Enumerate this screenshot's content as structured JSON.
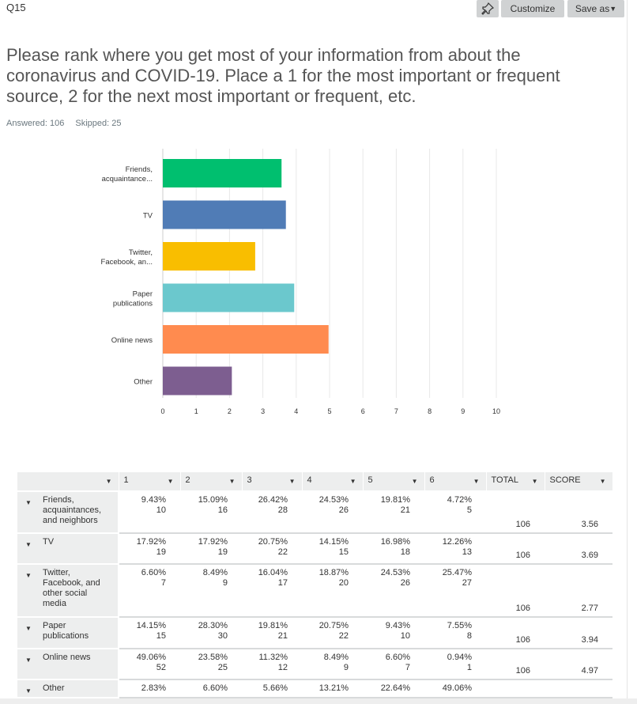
{
  "header": {
    "question_number": "Q15",
    "pin_icon": "pin-icon",
    "customize_label": "Customize",
    "save_as_label": "Save as"
  },
  "question": {
    "title": "Please rank where you get most of your information from about the coronavirus and COVID-19. Place a 1 for the most important or frequent source, 2 for the next most important or frequent, etc.",
    "answered": "Answered: 106",
    "skipped": "Skipped: 25"
  },
  "chart_data": {
    "type": "bar",
    "orientation": "horizontal",
    "categories": [
      [
        "Friends,",
        "acquaintance..."
      ],
      [
        "TV"
      ],
      [
        "Twitter,",
        "Facebook, an..."
      ],
      [
        "Paper",
        "publications"
      ],
      [
        "Online news"
      ],
      [
        "Other"
      ]
    ],
    "values": [
      3.56,
      3.69,
      2.77,
      3.94,
      4.97,
      2.07
    ],
    "colors": [
      "#00bf6f",
      "#507cb6",
      "#f9be00",
      "#6bc8cd",
      "#ff8b4f",
      "#7d5e90"
    ],
    "xlim": [
      0,
      10
    ],
    "xticks": [
      "0",
      "1",
      "2",
      "3",
      "4",
      "5",
      "6",
      "7",
      "8",
      "9",
      "10"
    ],
    "grid": true
  },
  "table": {
    "headers": [
      "1",
      "2",
      "3",
      "4",
      "5",
      "6",
      "TOTAL",
      "SCORE"
    ],
    "rows": [
      {
        "label": "Friends, acquaintances, and neighbors",
        "pct": [
          "9.43%",
          "15.09%",
          "26.42%",
          "24.53%",
          "19.81%",
          "4.72%"
        ],
        "counts": [
          "10",
          "16",
          "28",
          "26",
          "21",
          "5"
        ],
        "total": "106",
        "score": "3.56"
      },
      {
        "label": "TV",
        "pct": [
          "17.92%",
          "17.92%",
          "20.75%",
          "14.15%",
          "16.98%",
          "12.26%"
        ],
        "counts": [
          "19",
          "19",
          "22",
          "15",
          "18",
          "13"
        ],
        "total": "106",
        "score": "3.69"
      },
      {
        "label": "Twitter, Facebook, and other social media",
        "pct": [
          "6.60%",
          "8.49%",
          "16.04%",
          "18.87%",
          "24.53%",
          "25.47%"
        ],
        "counts": [
          "7",
          "9",
          "17",
          "20",
          "26",
          "27"
        ],
        "total": "106",
        "score": "2.77"
      },
      {
        "label": "Paper publications",
        "pct": [
          "14.15%",
          "28.30%",
          "19.81%",
          "20.75%",
          "9.43%",
          "7.55%"
        ],
        "counts": [
          "15",
          "30",
          "21",
          "22",
          "10",
          "8"
        ],
        "total": "106",
        "score": "3.94"
      },
      {
        "label": "Online news",
        "pct": [
          "49.06%",
          "23.58%",
          "11.32%",
          "8.49%",
          "6.60%",
          "0.94%"
        ],
        "counts": [
          "52",
          "25",
          "12",
          "9",
          "7",
          "1"
        ],
        "total": "106",
        "score": "4.97"
      },
      {
        "label": "Other",
        "pct": [
          "2.83%",
          "6.60%",
          "5.66%",
          "13.21%",
          "22.64%",
          "49.06%"
        ],
        "counts": [],
        "total": "",
        "score": ""
      }
    ]
  }
}
